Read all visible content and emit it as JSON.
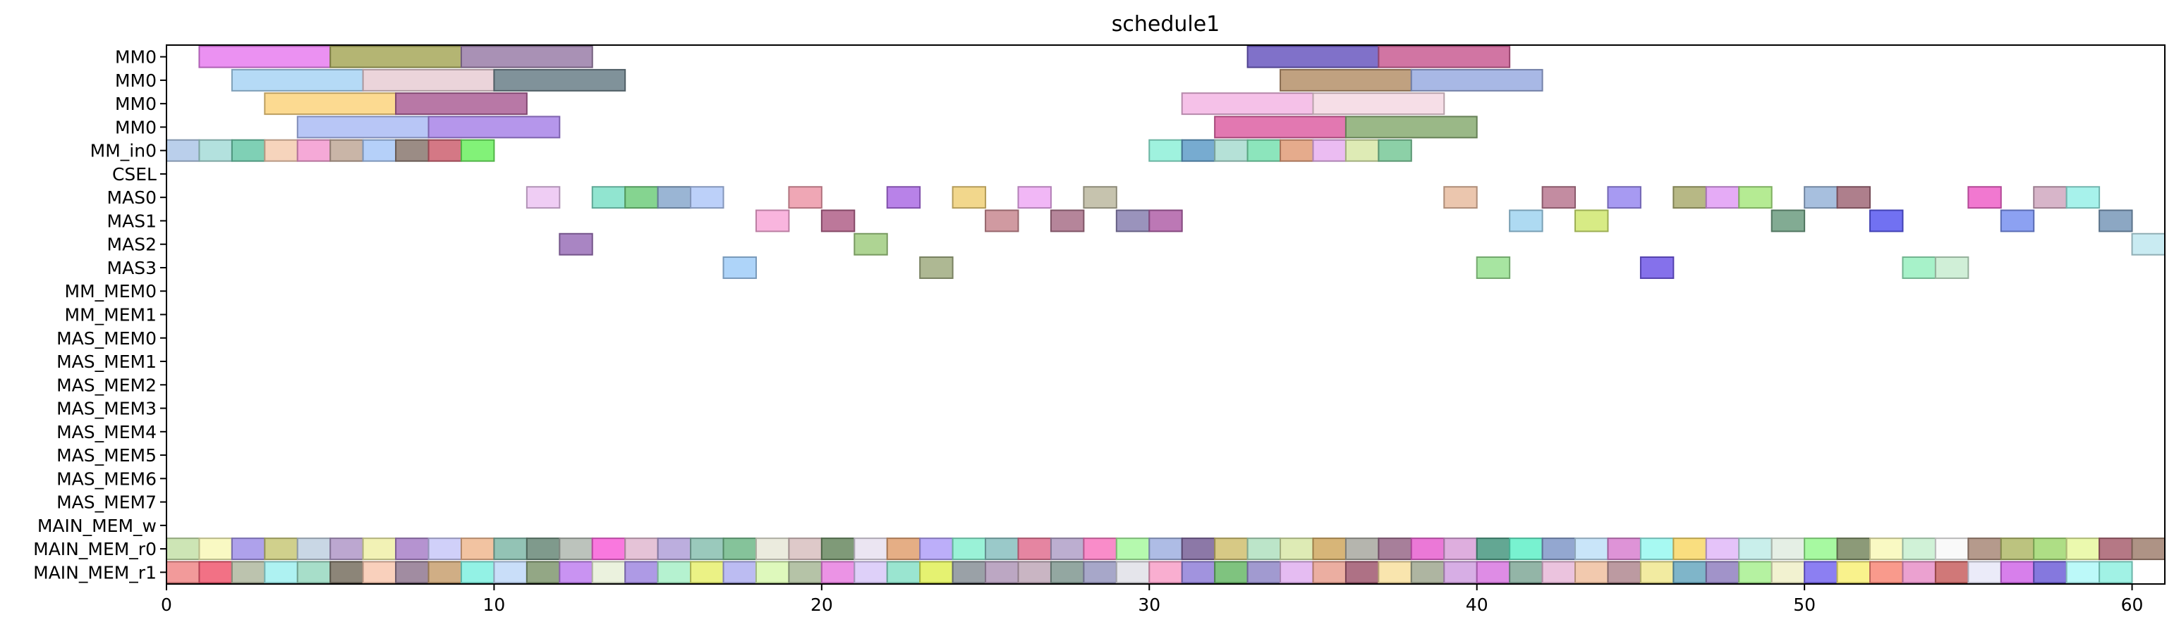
{
  "chart_data": {
    "type": "gantt",
    "title": "schedule1",
    "xlim": [
      0,
      61
    ],
    "xticks": [
      0,
      10,
      20,
      30,
      40,
      50,
      60
    ],
    "rows": [
      "MM0",
      "MM0",
      "MM0",
      "MM0",
      "MM_in0",
      "CSEL",
      "MAS0",
      "MAS1",
      "MAS2",
      "MAS3",
      "MM_MEM0",
      "MM_MEM1",
      "MAS_MEM0",
      "MAS_MEM1",
      "MAS_MEM2",
      "MAS_MEM3",
      "MAS_MEM4",
      "MAS_MEM5",
      "MAS_MEM6",
      "MAS_MEM7",
      "MAIN_MEM_w",
      "MAIN_MEM_r0",
      "MAIN_MEM_r1"
    ],
    "tasks": [
      {
        "row": 0,
        "start": 1,
        "end": 5,
        "color": "#e87ef0"
      },
      {
        "row": 0,
        "start": 5,
        "end": 9,
        "color": "#a7a85a"
      },
      {
        "row": 0,
        "start": 9,
        "end": 13,
        "color": "#9a7ea8"
      },
      {
        "row": 0,
        "start": 33,
        "end": 37,
        "color": "#6a58c0"
      },
      {
        "row": 0,
        "start": 37,
        "end": 41,
        "color": "#c95d93"
      },
      {
        "row": 1,
        "start": 2,
        "end": 6,
        "color": "#a8d4f5"
      },
      {
        "row": 1,
        "start": 6,
        "end": 10,
        "color": "#e8ccd4"
      },
      {
        "row": 1,
        "start": 10,
        "end": 14,
        "color": "#6a7f88"
      },
      {
        "row": 1,
        "start": 34,
        "end": 38,
        "color": "#b5906a"
      },
      {
        "row": 1,
        "start": 38,
        "end": 42,
        "color": "#99abe0"
      },
      {
        "row": 2,
        "start": 3,
        "end": 7,
        "color": "#fbd37e"
      },
      {
        "row": 2,
        "start": 7,
        "end": 11,
        "color": "#ac6096"
      },
      {
        "row": 2,
        "start": 31,
        "end": 35,
        "color": "#f3b6e4"
      },
      {
        "row": 2,
        "start": 35,
        "end": 39,
        "color": "#f5d8e3"
      },
      {
        "row": 3,
        "start": 4,
        "end": 8,
        "color": "#acbcf5"
      },
      {
        "row": 3,
        "start": 8,
        "end": 12,
        "color": "#a884e8"
      },
      {
        "row": 3,
        "start": 32,
        "end": 36,
        "color": "#dd60a3"
      },
      {
        "row": 3,
        "start": 36,
        "end": 40,
        "color": "#88ab72"
      },
      {
        "row": 4,
        "start": 0,
        "end": 1,
        "color": "#aec7e8"
      },
      {
        "row": 4,
        "start": 1,
        "end": 2,
        "color": "#a6dcd8"
      },
      {
        "row": 4,
        "start": 2,
        "end": 3,
        "color": "#68c8a8"
      },
      {
        "row": 4,
        "start": 3,
        "end": 4,
        "color": "#f5ccb0"
      },
      {
        "row": 4,
        "start": 4,
        "end": 5,
        "color": "#f39ad0"
      },
      {
        "row": 4,
        "start": 5,
        "end": 6,
        "color": "#c0a898"
      },
      {
        "row": 4,
        "start": 6,
        "end": 7,
        "color": "#a8c8f8"
      },
      {
        "row": 4,
        "start": 7,
        "end": 8,
        "color": "#8a7870"
      },
      {
        "row": 4,
        "start": 8,
        "end": 9,
        "color": "#cc6070"
      },
      {
        "row": 4,
        "start": 9,
        "end": 10,
        "color": "#6cf060"
      },
      {
        "row": 4,
        "start": 30,
        "end": 31,
        "color": "#8ef0d8"
      },
      {
        "row": 4,
        "start": 31,
        "end": 32,
        "color": "#5f9cc8"
      },
      {
        "row": 4,
        "start": 32,
        "end": 33,
        "color": "#a8dcd0"
      },
      {
        "row": 4,
        "start": 33,
        "end": 34,
        "color": "#78e0b0"
      },
      {
        "row": 4,
        "start": 34,
        "end": 35,
        "color": "#e09c78"
      },
      {
        "row": 4,
        "start": 35,
        "end": 36,
        "color": "#e8b0f0"
      },
      {
        "row": 4,
        "start": 36,
        "end": 37,
        "color": "#d8e8a8"
      },
      {
        "row": 4,
        "start": 37,
        "end": 38,
        "color": "#78c898"
      },
      {
        "row": 6,
        "start": 11,
        "end": 12,
        "color": "#ecc4f2"
      },
      {
        "row": 6,
        "start": 13,
        "end": 14,
        "color": "#7ee0c8"
      },
      {
        "row": 6,
        "start": 14,
        "end": 15,
        "color": "#70cc7c"
      },
      {
        "row": 6,
        "start": 15,
        "end": 16,
        "color": "#88a8cc"
      },
      {
        "row": 6,
        "start": 16,
        "end": 17,
        "color": "#b0c8f8"
      },
      {
        "row": 6,
        "start": 19,
        "end": 20,
        "color": "#ec98a8"
      },
      {
        "row": 6,
        "start": 22,
        "end": 23,
        "color": "#ac6ce4"
      },
      {
        "row": 6,
        "start": 24,
        "end": 25,
        "color": "#f0d078"
      },
      {
        "row": 6,
        "start": 26,
        "end": 27,
        "color": "#eeaaf4"
      },
      {
        "row": 6,
        "start": 28,
        "end": 29,
        "color": "#bcb8a0"
      },
      {
        "row": 6,
        "start": 39,
        "end": 40,
        "color": "#e8bca0"
      },
      {
        "row": 6,
        "start": 42,
        "end": 43,
        "color": "#b87890"
      },
      {
        "row": 6,
        "start": 44,
        "end": 45,
        "color": "#9888f0"
      },
      {
        "row": 6,
        "start": 46,
        "end": 47,
        "color": "#aaac70"
      },
      {
        "row": 6,
        "start": 47,
        "end": 48,
        "color": "#e09cf4"
      },
      {
        "row": 6,
        "start": 48,
        "end": 49,
        "color": "#a8e880"
      },
      {
        "row": 6,
        "start": 50,
        "end": 51,
        "color": "#98b4d8"
      },
      {
        "row": 6,
        "start": 51,
        "end": 52,
        "color": "#a06878"
      },
      {
        "row": 6,
        "start": 55,
        "end": 56,
        "color": "#ee60c8"
      },
      {
        "row": 6,
        "start": 57,
        "end": 58,
        "color": "#d0a8c0"
      },
      {
        "row": 6,
        "start": 58,
        "end": 59,
        "color": "#98f0e8"
      },
      {
        "row": 7,
        "start": 18,
        "end": 19,
        "color": "#f8a8d8"
      },
      {
        "row": 7,
        "start": 20,
        "end": 21,
        "color": "#b06088"
      },
      {
        "row": 7,
        "start": 25,
        "end": 26,
        "color": "#c88890"
      },
      {
        "row": 7,
        "start": 27,
        "end": 28,
        "color": "#a87088"
      },
      {
        "row": 7,
        "start": 29,
        "end": 30,
        "color": "#8880b0"
      },
      {
        "row": 7,
        "start": 30,
        "end": 31,
        "color": "#b060a8"
      },
      {
        "row": 7,
        "start": 41,
        "end": 42,
        "color": "#a0d4f0"
      },
      {
        "row": 7,
        "start": 43,
        "end": 44,
        "color": "#d0e870"
      },
      {
        "row": 7,
        "start": 49,
        "end": 50,
        "color": "#6c9c80"
      },
      {
        "row": 7,
        "start": 52,
        "end": 53,
        "color": "#5858f0"
      },
      {
        "row": 7,
        "start": 56,
        "end": 57,
        "color": "#7890f0"
      },
      {
        "row": 7,
        "start": 59,
        "end": 60,
        "color": "#7898b8"
      },
      {
        "row": 8,
        "start": 12,
        "end": 13,
        "color": "#9a70b8"
      },
      {
        "row": 8,
        "start": 21,
        "end": 22,
        "color": "#a0cc80"
      },
      {
        "row": 8,
        "start": 60,
        "end": 61,
        "color": "#c0e8f0"
      },
      {
        "row": 9,
        "start": 17,
        "end": 18,
        "color": "#a0ccf8"
      },
      {
        "row": 9,
        "start": 23,
        "end": 24,
        "color": "#a0ac80"
      },
      {
        "row": 9,
        "start": 40,
        "end": 41,
        "color": "#98e090"
      },
      {
        "row": 9,
        "start": 45,
        "end": 46,
        "color": "#7058e8"
      },
      {
        "row": 9,
        "start": 53,
        "end": 54,
        "color": "#98f0c0"
      },
      {
        "row": 9,
        "start": 54,
        "end": 55,
        "color": "#c8ecd0"
      }
    ],
    "main_mem_r0_colors": [
      "#c4e0a8",
      "#f8f8b8",
      "#a090e8",
      "#c8c878",
      "#c0d0e0",
      "#b098c8",
      "#f0f0a8",
      "#a880c8",
      "#c8c8f8",
      "#f0b890",
      "#80b8a8",
      "#688878",
      "#b0b8b0",
      "#f860d8",
      "#e0b8d0",
      "#b0a0d8",
      "#88c0b0",
      "#70b888",
      "#e8e8d8",
      "#d8c0c0",
      "#688860",
      "#e8e0f0",
      "#e0a070",
      "#b0a0f8",
      "#88f0d0",
      "#88c0c0",
      "#e07090",
      "#b0a0c8",
      "#f878c0",
      "#a8f8a0",
      "#a0b0e0",
      "#786098",
      "#d0c070",
      "#b0e0c0",
      "#d8e8a8",
      "#d0a860",
      "#a8a8a0",
      "#986888",
      "#e860d0",
      "#d8a0d8",
      "#489880",
      "#60f0c8",
      "#8098c8",
      "#c0e0f8",
      "#d880d0",
      "#98f8f0",
      "#f8d868",
      "#e0b8f8",
      "#c0ece8",
      "#e0ece0",
      "#98f890",
      "#788860",
      "#f8f8b8",
      "#c8f0d0",
      "#f8f8f8",
      "#a88878",
      "#b0b868",
      "#a0d870",
      "#e8f8a0",
      "#a86070",
      "#a08070"
    ],
    "main_mem_r1_colors": [
      "#f08888",
      "#f05870",
      "#b0b8a0",
      "#a0f0f0",
      "#98d8c0",
      "#787060",
      "#f8c8b0",
      "#907890",
      "#c8a070",
      "#80f0e0",
      "#c0d8f8",
      "#809870",
      "#c080f0",
      "#e8f0d8",
      "#a088e0",
      "#a8f0c8",
      "#e8f070",
      "#b0b0f0",
      "#d8f8b0",
      "#a8b898",
      "#e880e0",
      "#d8c8f8",
      "#88e0c8",
      "#e0f058",
      "#889098",
      "#b098b8",
      "#c0a8b8",
      "#809890",
      "#9898c0",
      "#e0e0e8",
      "#f8a0c8",
      "#9080d8",
      "#68b868",
      "#9088c8",
      "#e0b0f0",
      "#e8a090",
      "#a05870",
      "#f8e0a0",
      "#a0a890",
      "#d0a0e0",
      "#d878e0",
      "#80a898",
      "#e8b8d8",
      "#f0c0a0",
      "#b08890",
      "#f0e890",
      "#68a8c0",
      "#9080c0",
      "#a8f090",
      "#f0f0c8",
      "#7868f0",
      "#f8f078",
      "#f88878",
      "#e890c8",
      "#c86060",
      "#e8e8f8",
      "#d068e8",
      "#7060d8",
      "#b0f8f8",
      "#90f0e0"
    ]
  }
}
